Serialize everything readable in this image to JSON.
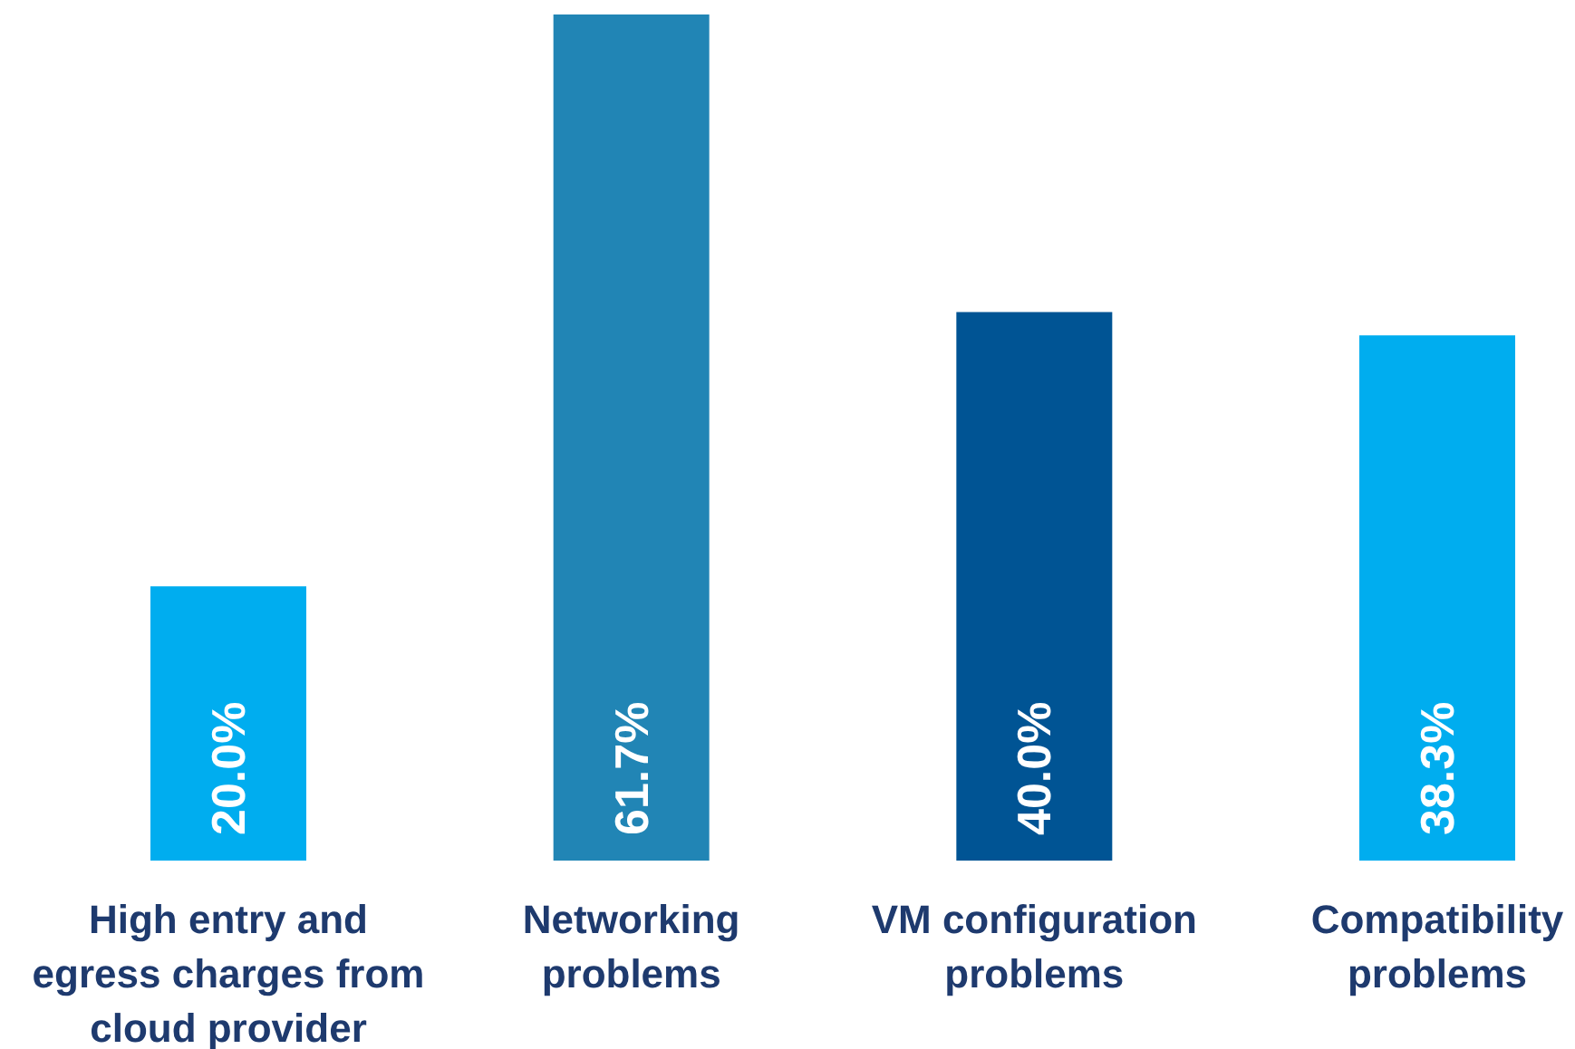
{
  "chart_data": {
    "type": "bar",
    "categories": [
      "High entry and\negress charges from\ncloud provider",
      "Networking\nproblems",
      "VM configuration\nproblems",
      "Compatibility\nproblems"
    ],
    "values": [
      20.0,
      61.7,
      40.0,
      38.3
    ],
    "colors": [
      "#00adef",
      "#2185b5",
      "#005494",
      "#00adef"
    ],
    "value_labels": [
      "20.0%",
      "61.7%",
      "40.0%",
      "38.3%"
    ]
  }
}
